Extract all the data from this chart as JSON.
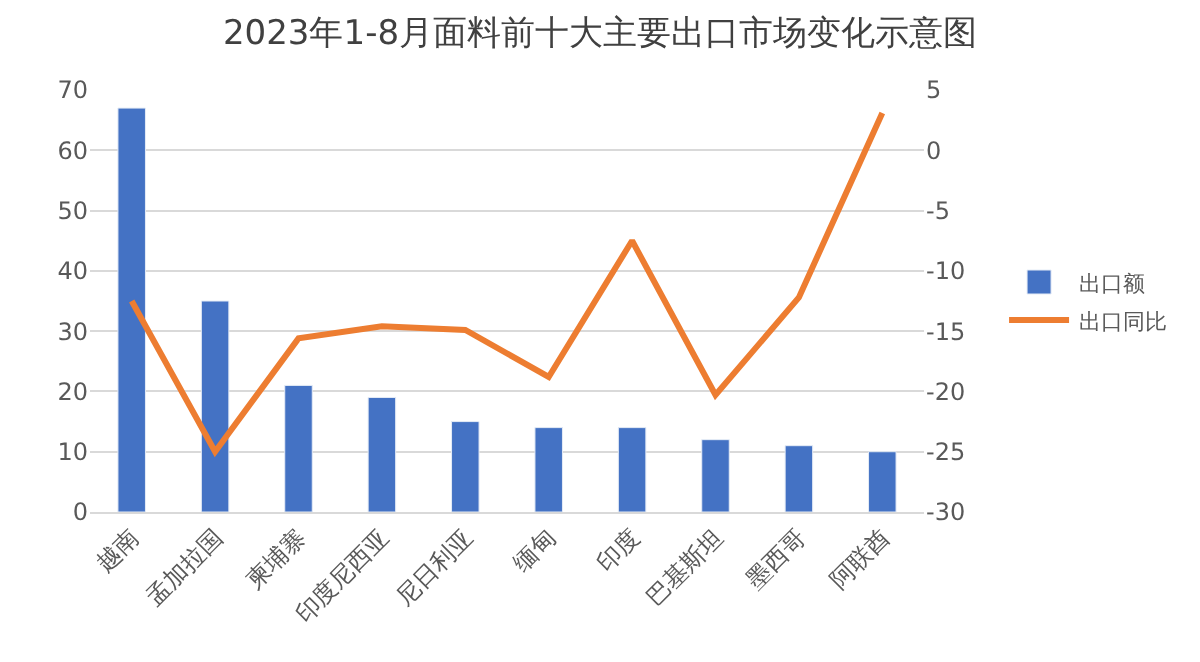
{
  "chart_data": {
    "type": "bar",
    "title": "2023年1-8月面料前十大主要出口市场变化示意图",
    "categories": [
      "越南",
      "孟加拉国",
      "柬埔寨",
      "印度尼西亚",
      "尼日利亚",
      "缅甸",
      "印度",
      "巴基斯坦",
      "墨西哥",
      "阿联酋"
    ],
    "series": [
      {
        "name": "出口额",
        "color": "#4472c4",
        "values": [
          67,
          35,
          21,
          19,
          15,
          14,
          14,
          12,
          11,
          10
        ]
      },
      {
        "name": "出口同比",
        "type": "line",
        "axis": "y2",
        "color": "#ed7d31",
        "values": [
          -12.5,
          -25,
          -15.6,
          -14.6,
          -14.9,
          -18.8,
          -7.5,
          -20.3,
          -12.2,
          3.1
        ]
      }
    ],
    "ylim": [
      0,
      70
    ],
    "yticks": [
      0,
      10,
      20,
      30,
      40,
      50,
      60,
      70
    ],
    "y2lim": [
      -30,
      5
    ],
    "y2ticks": [
      -30,
      -25,
      -20,
      -15,
      -10,
      -5,
      0,
      5
    ],
    "grid": "y",
    "legend": "right",
    "marker": "none",
    "line_style": "solid"
  }
}
